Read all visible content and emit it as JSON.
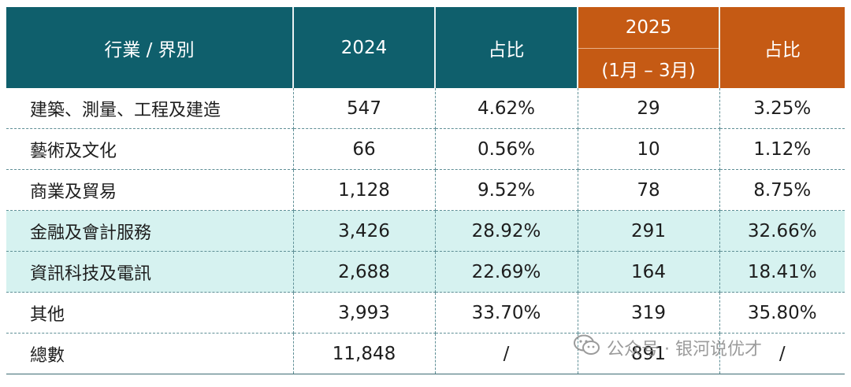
{
  "table": {
    "header": {
      "industry": "行業 / 界別",
      "y2024": "2024",
      "share1": "占比",
      "y2025": "2025",
      "period2025": "(1月 – 3月)",
      "share2": "占比"
    },
    "rows": [
      {
        "industry": "建築、測量、工程及建造",
        "v2024": "547",
        "s2024": "4.62%",
        "v2025": "29",
        "s2025": "3.25%"
      },
      {
        "industry": "藝術及文化",
        "v2024": "66",
        "s2024": "0.56%",
        "v2025": "10",
        "s2025": "1.12%"
      },
      {
        "industry": "商業及貿易",
        "v2024": "1,128",
        "s2024": "9.52%",
        "v2025": "78",
        "s2025": "8.75%"
      },
      {
        "industry": "金融及會計服務",
        "v2024": "3,426",
        "s2024": "28.92%",
        "v2025": "291",
        "s2025": "32.66%"
      },
      {
        "industry": "資訊科技及電訊",
        "v2024": "2,688",
        "s2024": "22.69%",
        "v2025": "164",
        "s2025": "18.41%"
      },
      {
        "industry": "其他",
        "v2024": "3,993",
        "s2024": "33.70%",
        "v2025": "319",
        "s2025": "35.80%"
      },
      {
        "industry": "總數",
        "v2024": "11,848",
        "s2024": "/",
        "v2025": "891",
        "s2025": "/"
      }
    ]
  },
  "watermark": {
    "text": "公众号 · 银河说优才",
    "icon": "wechat-icon"
  },
  "colors": {
    "header_2024": "#0f5f6c",
    "header_2025": "#c55a14",
    "highlight_row": "#d6f2f0"
  }
}
